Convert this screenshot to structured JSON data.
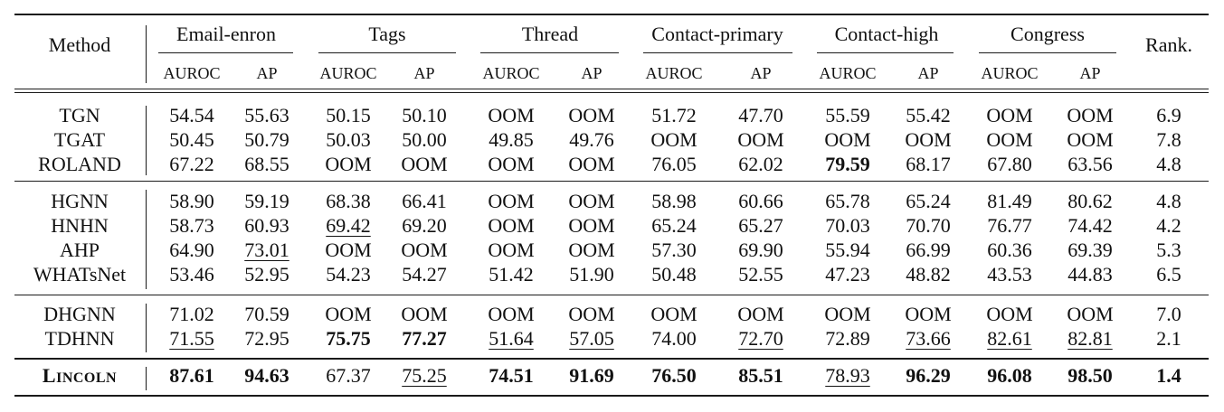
{
  "header": {
    "method": "Method",
    "rank": "Rank.",
    "metrics": [
      "AUROC",
      "AP"
    ],
    "groups": [
      "Email-enron",
      "Tags",
      "Thread",
      "Contact-primary",
      "Contact-high",
      "Congress"
    ]
  },
  "blocks": [
    [
      {
        "name": "TGN",
        "values": [
          "54.54",
          "55.63",
          "50.15",
          "50.10",
          "OOM",
          "OOM",
          "51.72",
          "47.70",
          "55.59",
          "55.42",
          "OOM",
          "OOM"
        ],
        "rank": "6.9",
        "bold": [],
        "underline": []
      },
      {
        "name": "TGAT",
        "values": [
          "50.45",
          "50.79",
          "50.03",
          "50.00",
          "49.85",
          "49.76",
          "OOM",
          "OOM",
          "OOM",
          "OOM",
          "OOM",
          "OOM"
        ],
        "rank": "7.8",
        "bold": [],
        "underline": []
      },
      {
        "name": "ROLAND",
        "values": [
          "67.22",
          "68.55",
          "OOM",
          "OOM",
          "OOM",
          "OOM",
          "76.05",
          "62.02",
          "79.59",
          "68.17",
          "67.80",
          "63.56"
        ],
        "rank": "4.8",
        "bold": [
          8
        ],
        "underline": []
      }
    ],
    [
      {
        "name": "HGNN",
        "values": [
          "58.90",
          "59.19",
          "68.38",
          "66.41",
          "OOM",
          "OOM",
          "58.98",
          "60.66",
          "65.78",
          "65.24",
          "81.49",
          "80.62"
        ],
        "rank": "4.8",
        "bold": [],
        "underline": []
      },
      {
        "name": "HNHN",
        "values": [
          "58.73",
          "60.93",
          "69.42",
          "69.20",
          "OOM",
          "OOM",
          "65.24",
          "65.27",
          "70.03",
          "70.70",
          "76.77",
          "74.42"
        ],
        "rank": "4.2",
        "bold": [],
        "underline": [
          2
        ]
      },
      {
        "name": "AHP",
        "values": [
          "64.90",
          "73.01",
          "OOM",
          "OOM",
          "OOM",
          "OOM",
          "57.30",
          "69.90",
          "55.94",
          "66.99",
          "60.36",
          "69.39"
        ],
        "rank": "5.3",
        "bold": [],
        "underline": [
          1
        ]
      },
      {
        "name": "WHATsNet",
        "values": [
          "53.46",
          "52.95",
          "54.23",
          "54.27",
          "51.42",
          "51.90",
          "50.48",
          "52.55",
          "47.23",
          "48.82",
          "43.53",
          "44.83"
        ],
        "rank": "6.5",
        "bold": [],
        "underline": []
      }
    ],
    [
      {
        "name": "DHGNN",
        "values": [
          "71.02",
          "70.59",
          "OOM",
          "OOM",
          "OOM",
          "OOM",
          "OOM",
          "OOM",
          "OOM",
          "OOM",
          "OOM",
          "OOM"
        ],
        "rank": "7.0",
        "bold": [],
        "underline": []
      },
      {
        "name": "TDHNN",
        "values": [
          "71.55",
          "72.95",
          "75.75",
          "77.27",
          "51.64",
          "57.05",
          "74.00",
          "72.70",
          "72.89",
          "73.66",
          "82.61",
          "82.81"
        ],
        "rank": "2.1",
        "bold": [
          2,
          3
        ],
        "underline": [
          0,
          4,
          5,
          7,
          9,
          10,
          11
        ]
      }
    ],
    [
      {
        "name": "LINCOLN",
        "values": [
          "87.61",
          "94.63",
          "67.37",
          "75.25",
          "74.51",
          "91.69",
          "76.50",
          "85.51",
          "78.93",
          "96.29",
          "96.08",
          "98.50"
        ],
        "rank": "1.4",
        "bold": [
          0,
          1,
          4,
          5,
          6,
          7,
          9,
          10,
          11
        ],
        "underline": [
          3,
          8
        ],
        "rank_bold": true,
        "smallcaps": true
      }
    ]
  ]
}
